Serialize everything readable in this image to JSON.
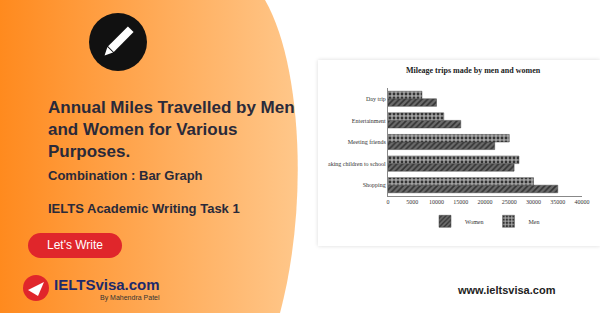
{
  "page": {
    "title": "Annual Miles Travelled by Men and Women for Various Purposes.",
    "subtitle": "Combination : Bar Graph",
    "task": "IELTS Academic Writing Task 1",
    "button": "Let's Write",
    "brand": "IELTSvisa.com",
    "brand_sub": "By Mahendra Patel",
    "url": "www.ieltsvisa.com"
  },
  "chart_data": {
    "type": "bar",
    "title": "Mileage trips made by men and women",
    "orientation": "horizontal",
    "categories": [
      "Shopping",
      "aking children to school",
      "Meeting friends",
      "Entertainment",
      "Day trip"
    ],
    "series": [
      {
        "name": "Women",
        "color": "#6b6b6b",
        "values": [
          35000,
          26000,
          22000,
          15000,
          10000
        ]
      },
      {
        "name": "Men",
        "color": "#a3a3a3",
        "values": [
          30000,
          27000,
          25000,
          11500,
          7000
        ]
      }
    ],
    "xlim": [
      0,
      40000
    ],
    "xticks": [
      0,
      5000,
      10000,
      15000,
      20000,
      25000,
      30000,
      35000,
      40000
    ],
    "grid": false,
    "legend": "bottom"
  }
}
